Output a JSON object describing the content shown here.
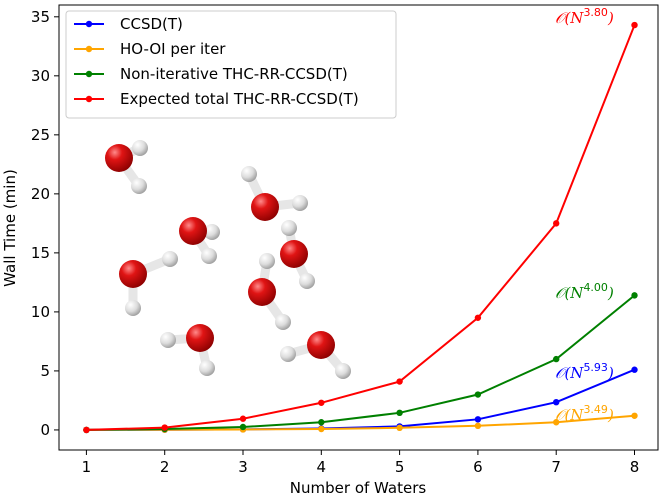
{
  "chart_data": {
    "type": "line",
    "xlabel": "Number of Waters",
    "ylabel": "Wall Time (min)",
    "x": [
      1,
      2,
      3,
      4,
      5,
      6,
      7,
      8
    ],
    "xlim": [
      0.65,
      8.3
    ],
    "ylim": [
      -1.7,
      36
    ],
    "xticks": [
      1,
      2,
      3,
      4,
      5,
      6,
      7,
      8
    ],
    "yticks": [
      0,
      5,
      10,
      15,
      20,
      25,
      30,
      35
    ],
    "grid": false,
    "legend_position": "top-left",
    "series": [
      {
        "name": "CCSD(T)",
        "color": "#0000ff",
        "values": [
          0.0,
          0.02,
          0.05,
          0.12,
          0.3,
          0.9,
          2.35,
          5.1
        ],
        "annotation": {
          "text": "𝒪(N",
          "exponent": "5.93",
          "suffix": ")"
        }
      },
      {
        "name": "HO-OI per iter",
        "color": "#ffa500",
        "values": [
          0.0,
          0.02,
          0.04,
          0.08,
          0.18,
          0.35,
          0.65,
          1.2
        ],
        "annotation": {
          "text": "𝒪(N",
          "exponent": "3.49",
          "suffix": ")"
        }
      },
      {
        "name": "Non-iterative THC-RR-CCSD(T)",
        "color": "#008000",
        "values": [
          0.0,
          0.08,
          0.25,
          0.65,
          1.45,
          3.0,
          6.0,
          11.4
        ],
        "annotation": {
          "text": "𝒪(N",
          "exponent": "4.00",
          "suffix": ")"
        }
      },
      {
        "name": "Expected total THC-RR-CCSD(T)",
        "color": "#ff0000",
        "values": [
          0.0,
          0.2,
          0.95,
          2.3,
          4.1,
          9.5,
          17.5,
          34.3
        ],
        "annotation": {
          "text": "𝒪(N",
          "exponent": "3.80",
          "suffix": ")"
        }
      }
    ]
  },
  "inset_image": {
    "icon": "water-cluster-image",
    "molecule_count": 8,
    "oxygen_color": "#dd0000",
    "hydrogen_color": "#e6e6e6"
  }
}
